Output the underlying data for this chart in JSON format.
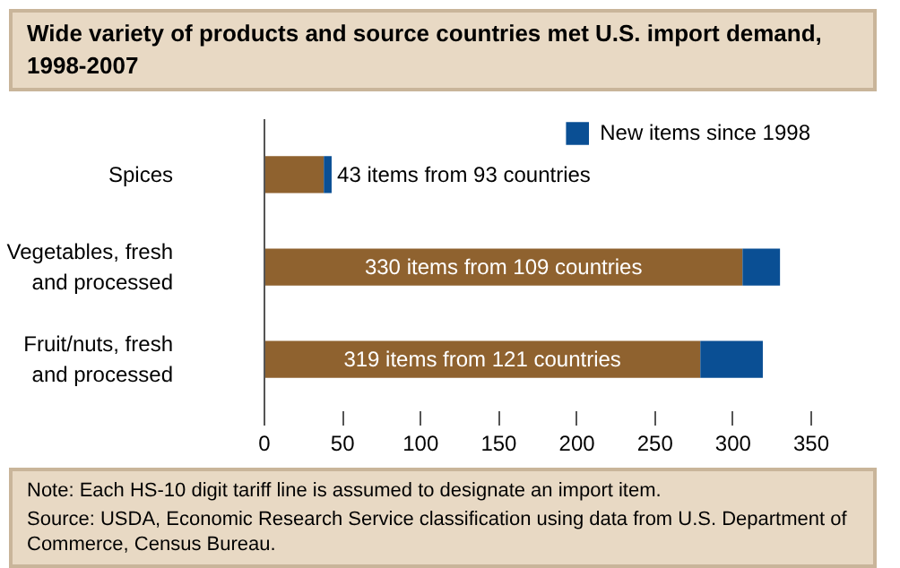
{
  "chart_data": {
    "type": "bar",
    "orientation": "horizontal",
    "stacked": true,
    "title": "Wide variety of products and source countries met U.S. import demand, 1998-2007",
    "categories": [
      "Spices",
      "Vegetables, fresh and processed",
      "Fruit/nuts, fresh and processed"
    ],
    "totals": [
      "43 items from 93 countries",
      "330 items from 109 countries",
      "319 items from 121 countries"
    ],
    "series": [
      {
        "color": "#8f622f",
        "values": [
          38,
          306,
          279
        ]
      },
      {
        "name": "New items since 1998",
        "color": "#0a4f94",
        "values": [
          5,
          24,
          40
        ]
      }
    ],
    "xlim": [
      0,
      350
    ],
    "xticks": [
      0,
      50,
      100,
      150,
      200,
      250,
      300,
      350
    ],
    "grid": false,
    "legend": "top right",
    "annotations": [
      "Note:  Each HS-10 digit tariff line is assumed to designate an import item.",
      "Source: USDA, Economic Research Service classification using data from U.S. Department of Commerce, Census Bureau."
    ]
  }
}
